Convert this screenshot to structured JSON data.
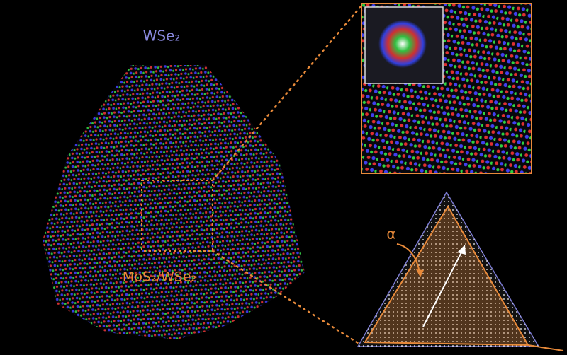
{
  "labels": {
    "top": "WSe₂",
    "bottom": "MoS₂/WSe₂",
    "angle": "α"
  }
}
